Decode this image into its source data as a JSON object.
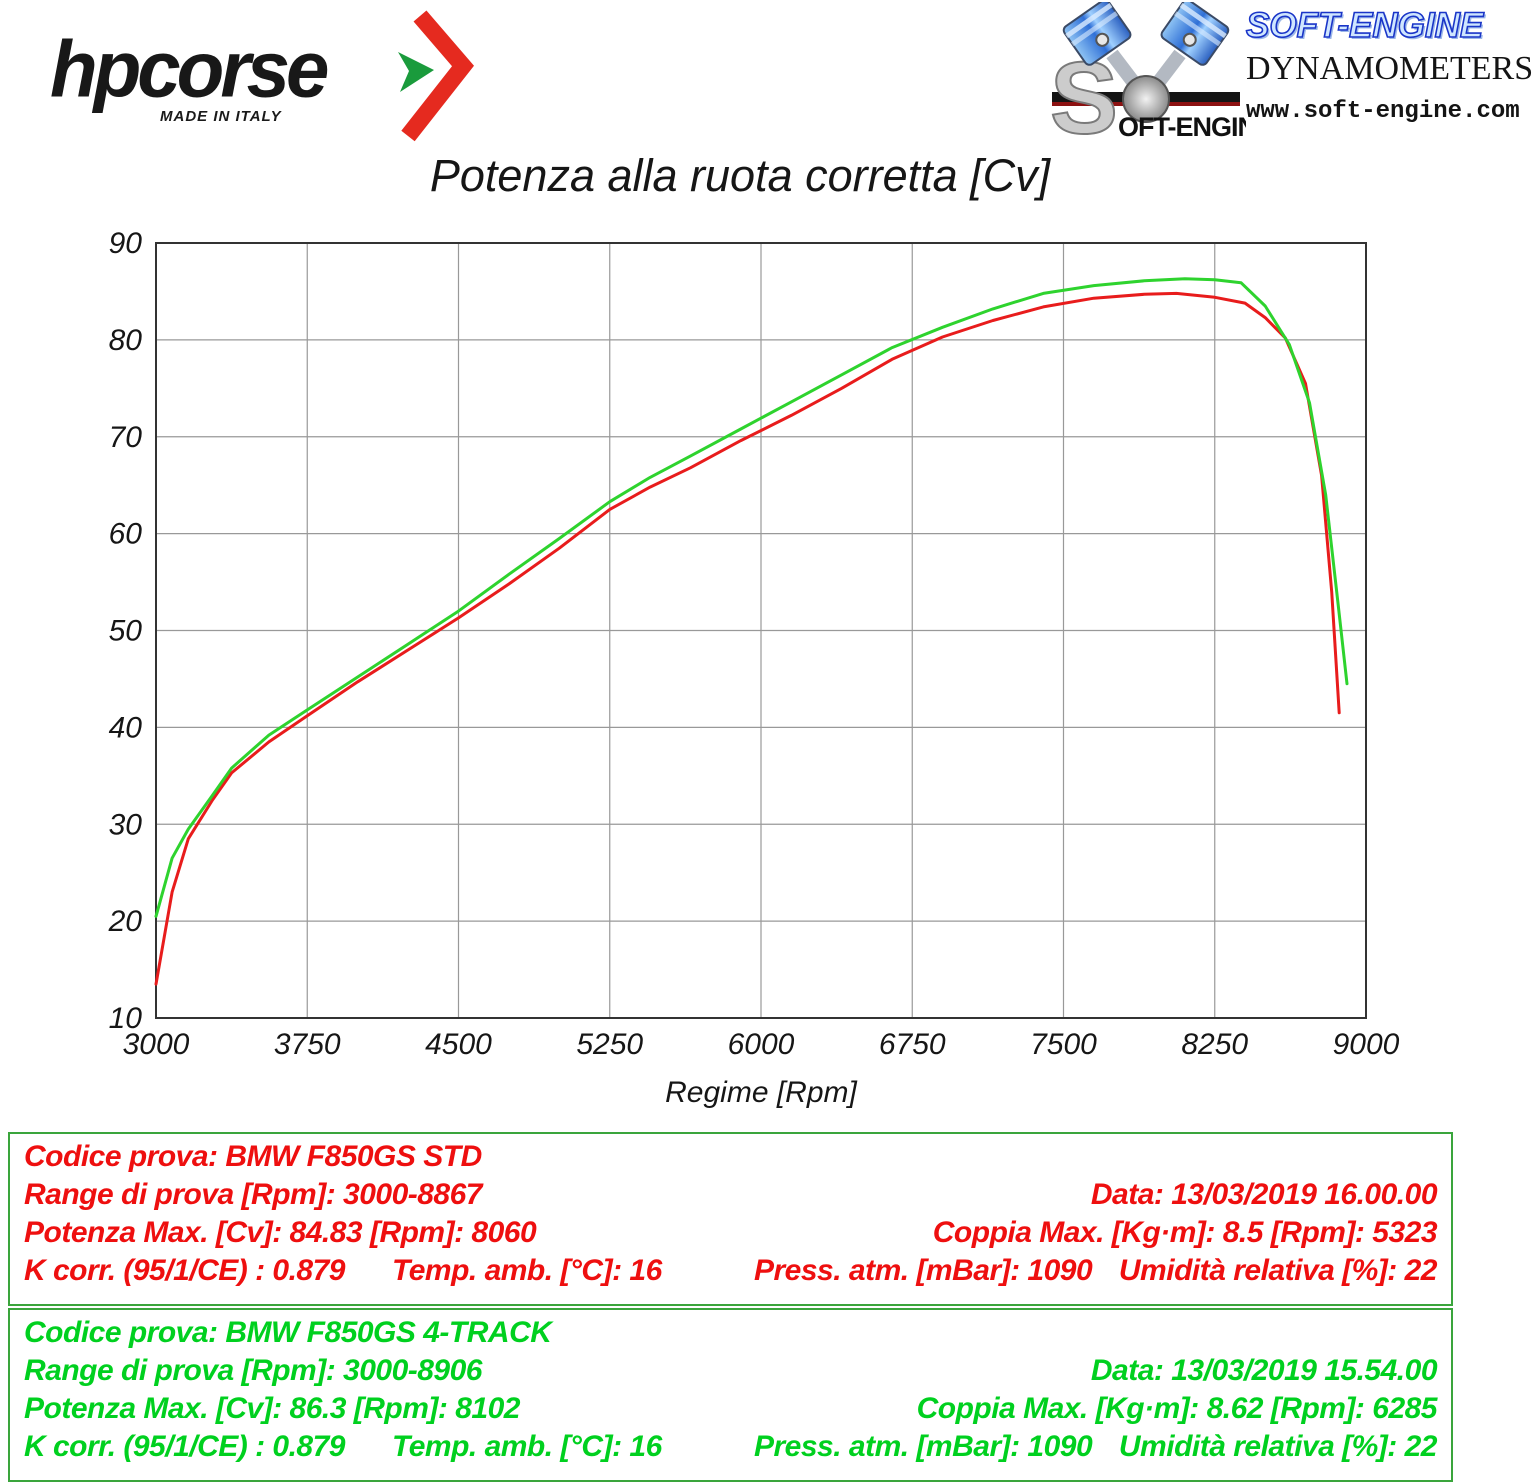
{
  "header": {
    "hpcorse": {
      "brand": "hpcorse",
      "tagline": "MADE IN ITALY"
    },
    "softengine": {
      "brand": "SOFT-ENGINE",
      "subtitle": "DYNAMOMETERS",
      "url": "www.soft-engine.com",
      "icon_text": "OFT-ENGINE"
    }
  },
  "chart_data": {
    "type": "line",
    "title": "Potenza alla ruota corretta [Cv]",
    "xlabel": "Regime [Rpm]",
    "ylabel": "",
    "xlim": [
      3000,
      9000
    ],
    "ylim": [
      10,
      90
    ],
    "x_ticks": [
      3000,
      3750,
      4500,
      5250,
      6000,
      6750,
      7500,
      8250,
      9000
    ],
    "y_ticks": [
      10,
      20,
      30,
      40,
      50,
      60,
      70,
      80,
      90
    ],
    "grid": true,
    "grid_color": "#999999",
    "border_color": "#333333",
    "series": [
      {
        "name": "BMW F850GS STD",
        "color": "#e81c1c",
        "points": [
          [
            3000,
            13.5
          ],
          [
            3080,
            23.0
          ],
          [
            3160,
            28.5
          ],
          [
            3280,
            32.5
          ],
          [
            3375,
            35.3
          ],
          [
            3560,
            38.5
          ],
          [
            3750,
            41.2
          ],
          [
            4000,
            44.7
          ],
          [
            4250,
            48.0
          ],
          [
            4500,
            51.3
          ],
          [
            4750,
            54.8
          ],
          [
            5000,
            58.5
          ],
          [
            5250,
            62.5
          ],
          [
            5450,
            64.8
          ],
          [
            5650,
            66.8
          ],
          [
            5900,
            69.6
          ],
          [
            6150,
            72.2
          ],
          [
            6400,
            75.0
          ],
          [
            6650,
            78.0
          ],
          [
            6900,
            80.3
          ],
          [
            7150,
            82.0
          ],
          [
            7400,
            83.4
          ],
          [
            7650,
            84.3
          ],
          [
            7900,
            84.7
          ],
          [
            8060,
            84.8
          ],
          [
            8250,
            84.4
          ],
          [
            8400,
            83.8
          ],
          [
            8500,
            82.3
          ],
          [
            8600,
            80.2
          ],
          [
            8700,
            75.5
          ],
          [
            8780,
            66.0
          ],
          [
            8830,
            54.0
          ],
          [
            8867,
            41.5
          ]
        ]
      },
      {
        "name": "BMW F850GS 4-TRACK",
        "color": "#2ed32e",
        "points": [
          [
            3000,
            20.5
          ],
          [
            3080,
            26.5
          ],
          [
            3160,
            29.5
          ],
          [
            3280,
            33.0
          ],
          [
            3375,
            35.8
          ],
          [
            3560,
            39.2
          ],
          [
            3750,
            41.8
          ],
          [
            4000,
            45.2
          ],
          [
            4250,
            48.6
          ],
          [
            4500,
            52.0
          ],
          [
            4750,
            55.8
          ],
          [
            5000,
            59.5
          ],
          [
            5250,
            63.3
          ],
          [
            5450,
            65.8
          ],
          [
            5650,
            68.0
          ],
          [
            5900,
            70.8
          ],
          [
            6150,
            73.6
          ],
          [
            6400,
            76.4
          ],
          [
            6650,
            79.2
          ],
          [
            6900,
            81.3
          ],
          [
            7150,
            83.2
          ],
          [
            7400,
            84.8
          ],
          [
            7650,
            85.6
          ],
          [
            7900,
            86.1
          ],
          [
            8102,
            86.3
          ],
          [
            8250,
            86.2
          ],
          [
            8380,
            85.9
          ],
          [
            8500,
            83.5
          ],
          [
            8620,
            79.5
          ],
          [
            8720,
            73.5
          ],
          [
            8800,
            64.0
          ],
          [
            8860,
            53.0
          ],
          [
            8906,
            44.5
          ]
        ]
      }
    ]
  },
  "results": [
    {
      "text_color": "#ee0f0f",
      "border_color": "#3aa53c",
      "codice": "Codice prova: BMW F850GS STD",
      "range": "Range di prova [Rpm]: 3000-8867",
      "data": "Data: 13/03/2019  16.00.00",
      "potenza": "Potenza Max. [Cv]: 84.83   [Rpm]: 8060",
      "coppia": "Coppia Max. [Kg·m]: 8.5   [Rpm]: 5323",
      "k_corr": "K corr. (95/1/CE) : 0.879",
      "temp": "Temp. amb. [°C]: 16",
      "press": "Press. atm. [mBar]: 1090",
      "umidita": "Umidità relativa [%]: 22"
    },
    {
      "text_color": "#00d01f",
      "border_color": "#3aa53c",
      "codice": "Codice prova: BMW F850GS 4-TRACK",
      "range": "Range di prova [Rpm]: 3000-8906",
      "data": "Data: 13/03/2019  15.54.00",
      "potenza": "Potenza Max. [Cv]: 86.3   [Rpm]: 8102",
      "coppia": "Coppia Max. [Kg·m]: 8.62   [Rpm]: 6285",
      "k_corr": "K corr. (95/1/CE) : 0.879",
      "temp": "Temp. amb. [°C]: 16",
      "press": "Press. atm. [mBar]: 1090",
      "umidita": "Umidità relativa [%]: 22"
    }
  ]
}
